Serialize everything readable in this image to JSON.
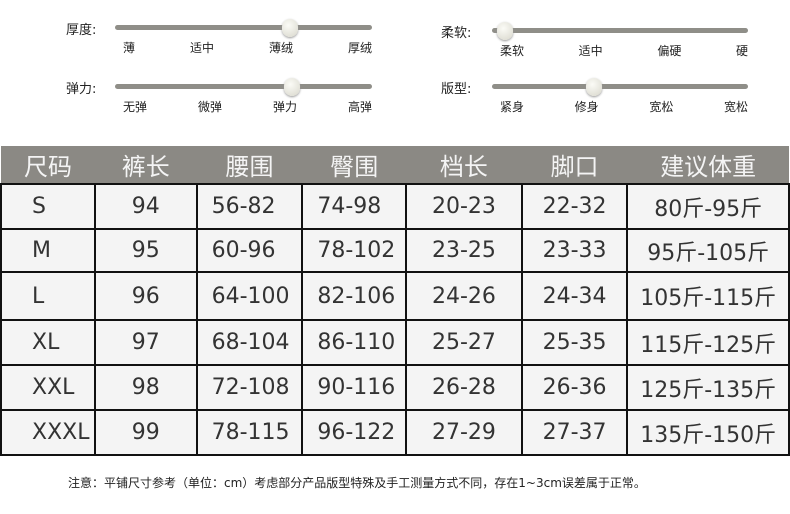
{
  "attributes": [
    {
      "label": "厚度:",
      "options": [
        "薄",
        "适中",
        "薄绒",
        "厚绒"
      ],
      "level": 0.68
    },
    {
      "label": "柔软:",
      "options": [
        "柔软",
        "适中",
        "偏硬",
        "硬"
      ],
      "level": 0.05
    },
    {
      "label": "弹力:",
      "options": [
        "无弹",
        "微弹",
        "弹力",
        "高弹"
      ],
      "level": 0.69
    },
    {
      "label": "版型:",
      "options": [
        "紧身",
        "修身",
        "宽松",
        "宽松"
      ],
      "level": 0.4
    }
  ],
  "table": {
    "headers": [
      "尺码",
      "裤长",
      "腰围",
      "臀围",
      "档长",
      "脚口",
      "建议体重"
    ],
    "rows": [
      [
        "S",
        "94",
        "56-82",
        "74-98",
        "20-23",
        "22-32",
        "80斤-95斤"
      ],
      [
        "M",
        "95",
        "60-96",
        "78-102",
        "23-25",
        "23-33",
        "95斤-105斤"
      ],
      [
        "L",
        "96",
        "64-100",
        "82-106",
        "24-26",
        "24-34",
        "105斤-115斤"
      ],
      [
        "XL",
        "97",
        "68-104",
        "86-110",
        "25-27",
        "25-35",
        "115斤-125斤"
      ],
      [
        "XXL",
        "98",
        "72-108",
        "90-116",
        "26-28",
        "26-36",
        "125斤-135斤"
      ],
      [
        "XXXL",
        "99",
        "78-115",
        "96-122",
        "27-29",
        "27-37",
        "135斤-150斤"
      ]
    ]
  },
  "note": "注意：平铺尺寸参考（单位：cm）考虑部分产品版型特殊及手工测量方式不同，存在1~3cm误差属于正常。"
}
